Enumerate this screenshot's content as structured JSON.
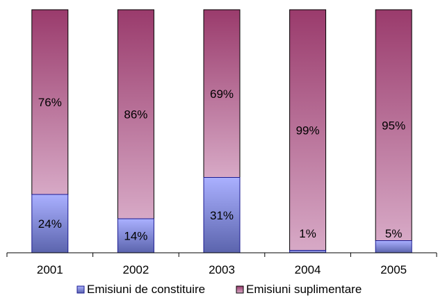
{
  "chart_data": {
    "type": "bar",
    "stacked": true,
    "percent_stacked": true,
    "categories": [
      "2001",
      "2002",
      "2003",
      "2004",
      "2005"
    ],
    "series": [
      {
        "name": "Emisiuni de constituire",
        "values": [
          24,
          14,
          31,
          1,
          5
        ],
        "color_top": "#aab0ff",
        "color_bottom": "#5b64ad",
        "stroke": "#1a1a90"
      },
      {
        "name": "Emisiuni suplimentare",
        "values": [
          76,
          86,
          69,
          99,
          95
        ],
        "color_top": "#9a3b6c",
        "color_bottom": "#d7a9c6",
        "stroke": "#000000"
      }
    ],
    "data_labels": [
      "24%",
      "14%",
      "31%",
      "1%",
      "5%",
      "76%",
      "86%",
      "69%",
      "99%",
      "95%"
    ],
    "ylim": [
      0,
      100
    ],
    "grid": false,
    "legend_position": "bottom"
  }
}
